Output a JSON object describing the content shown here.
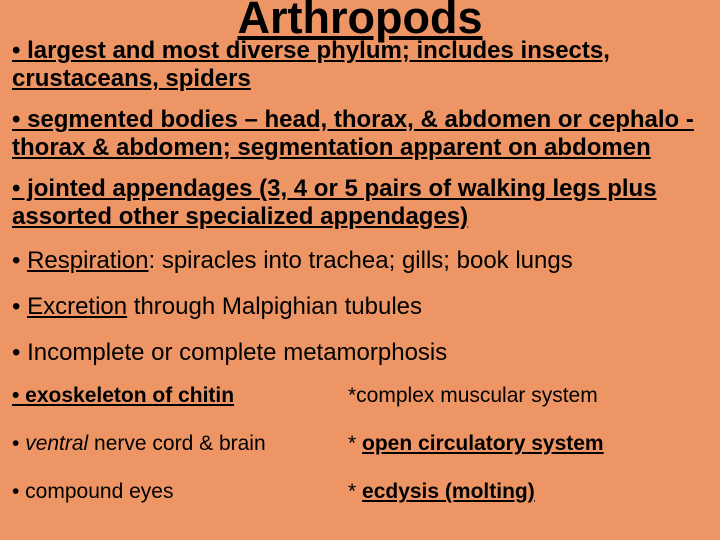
{
  "background_color": "#ed9564",
  "text_color": "#000000",
  "font_family": "Comic Sans MS",
  "title": {
    "text": "Arthropods",
    "fontsize": 45,
    "bold": true,
    "underline": true
  },
  "bullets": [
    {
      "text": "• largest and most diverse phylum; includes insects, crustaceans, spiders",
      "fontsize": 24,
      "bold": true,
      "underline": true
    },
    {
      "text": "• segmented bodies – head, thorax, & abdomen or cephalo -thorax & abdomen; segmentation apparent on abdomen",
      "fontsize": 24,
      "bold": true,
      "underline": true
    },
    {
      "text": "• jointed appendages (3, 4 or 5 pairs of walking legs plus assorted other specialized appendages)",
      "fontsize": 24,
      "bold": true,
      "underline": true
    },
    {
      "prefix": "• ",
      "underlined_word": "Respiration",
      "suffix": ":  spiracles into trachea; gills; book lungs",
      "fontsize": 24
    },
    {
      "prefix": "• ",
      "underlined_word": "Excretion",
      "suffix": " through Malpighian tubules",
      "fontsize": 24
    },
    {
      "text": "• Incomplete or complete metamorphosis",
      "fontsize": 24
    },
    {
      "text": "• exoskeleton of chitin",
      "fontsize": 21,
      "bold": true,
      "underline": true
    },
    {
      "text": "*complex muscular system",
      "fontsize": 21
    },
    {
      "prefix": "• ",
      "italic_word": "ventral",
      "suffix": " nerve cord & brain",
      "fontsize": 21
    },
    {
      "prefix": "* ",
      "styled_word": "open circulatory system",
      "styled_bold_underline": true,
      "fontsize": 21
    },
    {
      "text": "• compound eyes",
      "fontsize": 21
    },
    {
      "prefix": "* ",
      "styled_word": "ecdysis (molting)",
      "styled_bold_underline": true,
      "fontsize": 21
    }
  ]
}
